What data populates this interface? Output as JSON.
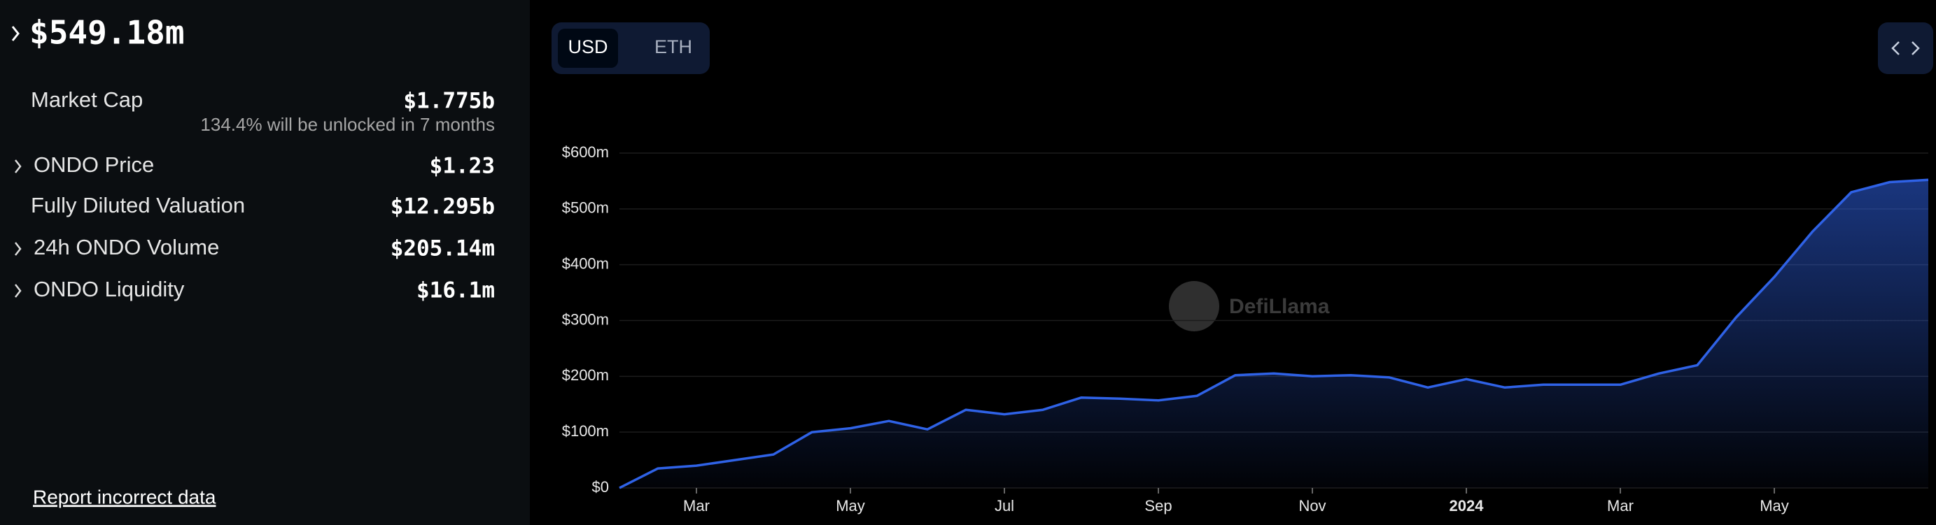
{
  "summary": {
    "title": "$549.18m",
    "rows": [
      {
        "label": "Market Cap",
        "value": "$1.775b",
        "note": "134.4% will be unlocked in 7 months"
      },
      {
        "label": "ONDO Price",
        "value": "$1.23"
      },
      {
        "label": "Fully Diluted Valuation",
        "value": "$12.295b"
      },
      {
        "label": "24h ONDO Volume",
        "value": "$205.14m"
      },
      {
        "label": "ONDO Liquidity",
        "value": "$16.1m"
      }
    ],
    "report": "Report incorrect data"
  },
  "toggle": [
    "USD",
    "ETH"
  ],
  "watermark": "DefiLlama",
  "chart_data": {
    "type": "line",
    "color": "#2f62e6",
    "categories": [
      null,
      null,
      "Mar",
      null,
      null,
      null,
      "May",
      null,
      null,
      null,
      "Jul",
      null,
      null,
      null,
      "Sep",
      null,
      null,
      null,
      "Nov",
      null,
      null,
      null,
      "2024",
      null,
      null,
      null,
      "Mar",
      null,
      null,
      null,
      "May",
      null,
      null,
      null,
      null
    ],
    "values": [
      0,
      35,
      40,
      50,
      60,
      100,
      107,
      120,
      105,
      140,
      132,
      140,
      162,
      160,
      157,
      165,
      202,
      205,
      200,
      202,
      198,
      180,
      195,
      180,
      185,
      185,
      185,
      205,
      220,
      305,
      378,
      460,
      530,
      548,
      552
    ],
    "ylim": [
      0,
      600
    ],
    "yticks": [
      {
        "value": 0,
        "label": "$0"
      },
      {
        "value": 100,
        "label": "$100m"
      },
      {
        "value": 200,
        "label": "$200m"
      },
      {
        "value": 300,
        "label": "$300m"
      },
      {
        "value": 400,
        "label": "$400m"
      },
      {
        "value": 500,
        "label": "$500m"
      },
      {
        "value": 600,
        "label": "$600m"
      }
    ],
    "grid": true
  }
}
